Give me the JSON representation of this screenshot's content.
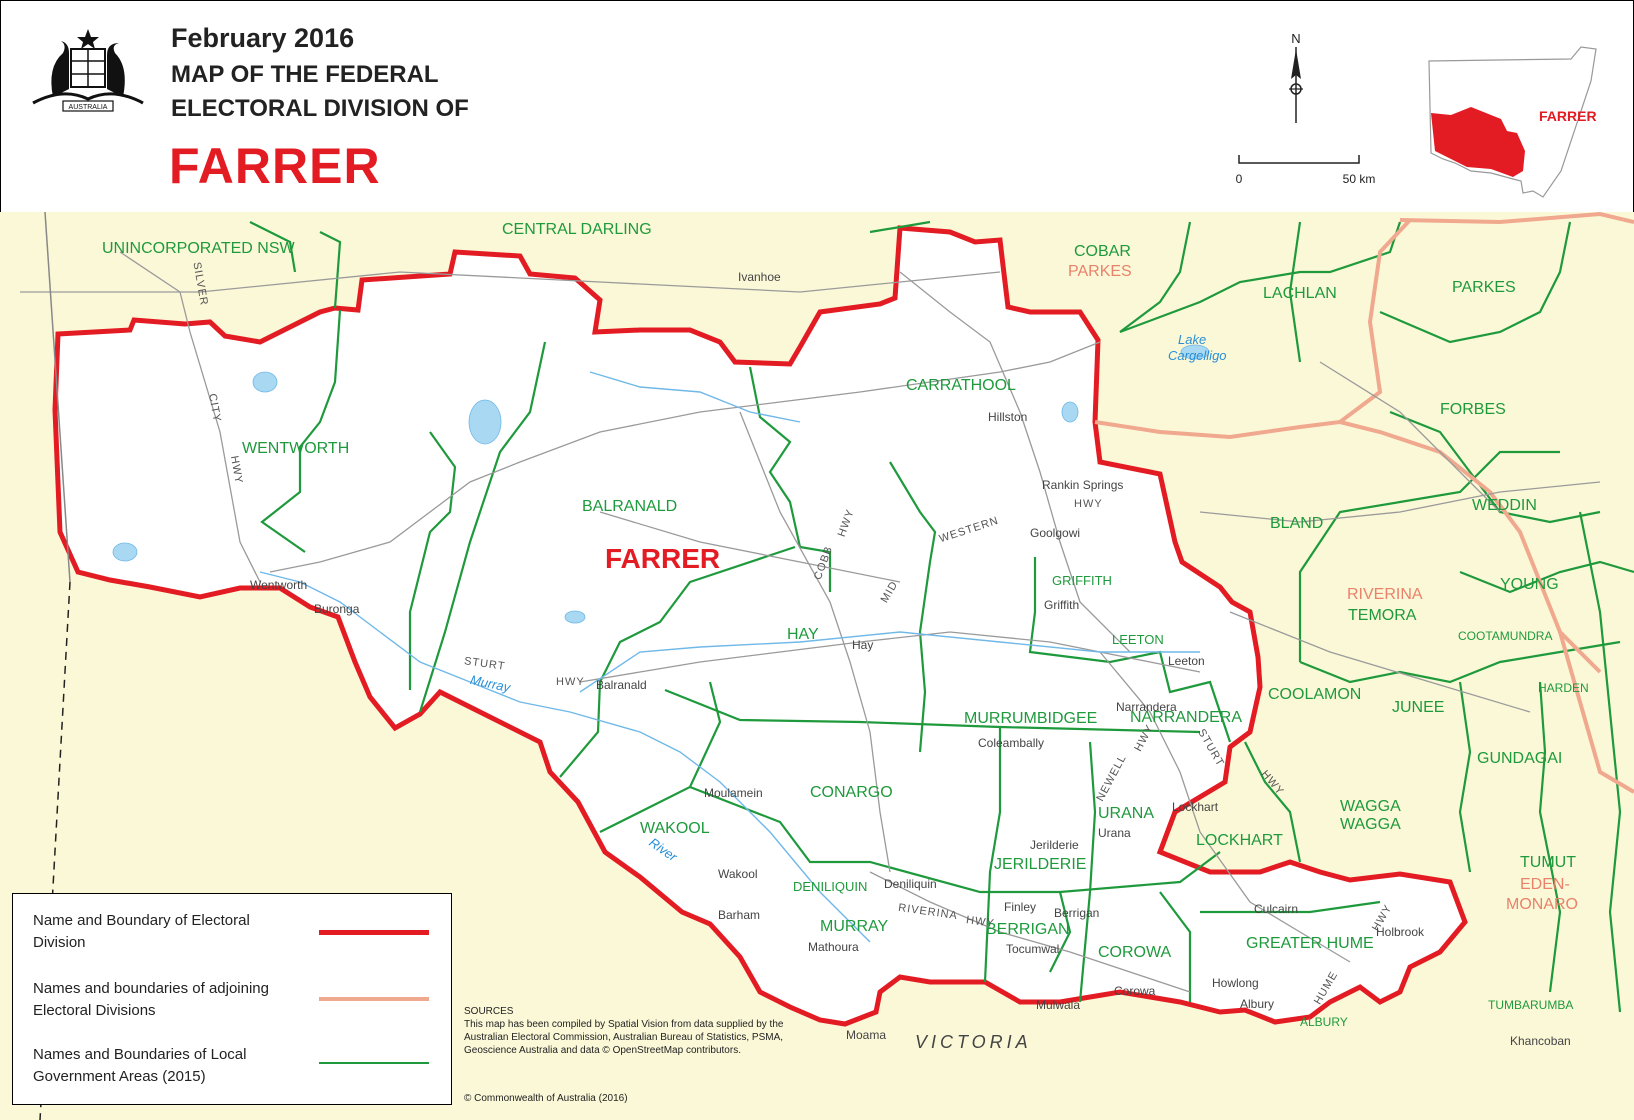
{
  "header": {
    "date": "February 2016",
    "subtitle_line1": "MAP OF THE FEDERAL",
    "subtitle_line2": "ELECTORAL DIVISION OF",
    "division": "FARRER",
    "crest_text": "AUSTRALIA",
    "north_label": "N",
    "scale_start": "0",
    "scale_end": "50 km",
    "inset_label": "FARRER"
  },
  "colors": {
    "division_boundary": "#e31b23",
    "adjoining_boundary": "#f0a88e",
    "lga_boundary": "#1e9a3c",
    "outside_fill": "#fbf8d8",
    "inside_fill": "#ffffff",
    "water": "#a9d8f2",
    "roads": "#8a8a8a"
  },
  "map": {
    "division_label": "FARRER",
    "state_label": "VICTORIA",
    "lga_labels": [
      "UNINCORPORATED NSW",
      "CENTRAL DARLING",
      "COBAR",
      "LACHLAN",
      "PARKES",
      "CARRATHOOL",
      "WENTWORTH",
      "BALRANALD",
      "FORBES",
      "WEDDIN",
      "BLAND",
      "GRIFFITH",
      "HAY",
      "LEETON",
      "YOUNG",
      "TEMORA",
      "COOTAMUNDRA",
      "HARDEN",
      "MURRUMBIDGEE",
      "NARRANDERA",
      "COOLAMON",
      "JUNEE",
      "GUNDAGAI",
      "CONARGO",
      "URANA",
      "LOCKHART",
      "WAGGA",
      "WAGGA",
      "WAKOOL",
      "JERILDERIE",
      "TUMUT",
      "DENILIQUIN",
      "MURRAY",
      "BERRIGAN",
      "COROWA",
      "GREATER HUME",
      "TUMBARUMBA",
      "ALBURY"
    ],
    "adjoining_labels": [
      "PARKES",
      "RIVERINA",
      "EDEN-",
      "MONARO"
    ],
    "towns": [
      "Ivanhoe",
      "Hillston",
      "Rankin Springs",
      "Goolgowi",
      "Griffith",
      "Wentworth",
      "Buronga",
      "Hay",
      "Leeton",
      "Balranald",
      "Narrandera",
      "Coleambally",
      "Moulamein",
      "Lockhart",
      "Jerilderie",
      "Urana",
      "Wakool",
      "Deniliquin",
      "Barham",
      "Finley",
      "Berrigan",
      "Culcairn",
      "Holbrook",
      "Mathoura",
      "Tocumwal",
      "Howlong",
      "Albury",
      "Corowa",
      "Mulwala",
      "Moama",
      "Khancoban"
    ],
    "roads": [
      "SILVER",
      "CITY",
      "HWY",
      "HWY",
      "COBB",
      "HWY",
      "WESTERN",
      "MID",
      "STURT",
      "HWY",
      "NEWELL",
      "HWY",
      "STURT",
      "HWY",
      "RIVERINA",
      "HWY",
      "HUME",
      "HWY"
    ],
    "water": [
      "Lake",
      "Cargelligo",
      "Murray",
      "River"
    ]
  },
  "legend": {
    "items": [
      {
        "label": "Name and Boundary of Electoral Division",
        "color": "#e31b23"
      },
      {
        "label": "Names and boundaries of adjoining Electoral Divisions",
        "color": "#f0a88e"
      },
      {
        "label": "Names and Boundaries of Local Government Areas (2015)",
        "color": "#1e9a3c"
      }
    ]
  },
  "sources": {
    "heading": "SOURCES",
    "text": "This map has been compiled by Spatial Vision from data supplied by the Australian Electoral Commission, Australian Bureau of Statistics, PSMA, Geoscience Australia and data © OpenStreetMap contributors.",
    "copyright": "© Commonwealth of Australia (2016)"
  }
}
